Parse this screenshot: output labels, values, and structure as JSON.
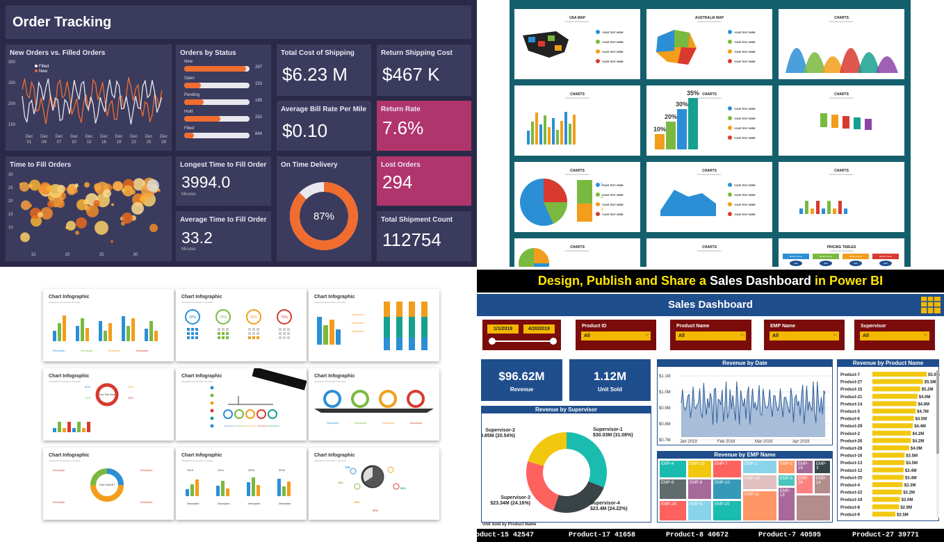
{
  "q1": {
    "title": "Order Tracking",
    "new_vs_filled": {
      "title": "New Orders vs. Filled Orders",
      "legend": [
        "Filled",
        "New"
      ],
      "y_ticks": [
        "300",
        "250",
        "200",
        "150"
      ],
      "x_ticks": [
        [
          "Dec",
          "01"
        ],
        [
          "Dec",
          "04"
        ],
        [
          "Dec",
          "07"
        ],
        [
          "Dec",
          "10"
        ],
        [
          "Dec",
          "13"
        ],
        [
          "Dec",
          "16"
        ],
        [
          "Dec",
          "19"
        ],
        [
          "Dec",
          "22"
        ],
        [
          "Dec",
          "25"
        ],
        [
          "Dec",
          "28"
        ]
      ]
    },
    "by_status": {
      "title": "Orders by Status",
      "rows": [
        {
          "label": "New",
          "value": "297",
          "fill": 0.95
        },
        {
          "label": "Open",
          "value": "153",
          "fill": 0.25
        },
        {
          "label": "Pending",
          "value": "165",
          "fill": 0.3
        },
        {
          "label": "Hold",
          "value": "252",
          "fill": 0.55
        },
        {
          "label": "Filled",
          "value": "844",
          "fill": 0.15
        }
      ]
    },
    "cost_shipping": {
      "title": "Total Cost of Shipping",
      "value": "$6.23 M"
    },
    "return_cost": {
      "title": "Return Shipping Cost",
      "value": "$467 K"
    },
    "avg_bill": {
      "title": "Average Bill Rate Per Mile",
      "value": "$0.10"
    },
    "return_rate": {
      "title": "Return Rate",
      "value": "7.6%"
    },
    "time_to_fill": {
      "title": "Time to Fill Orders",
      "y_ticks": [
        "30",
        "25",
        "20",
        "15",
        "10"
      ],
      "x_ticks": [
        "15",
        "20",
        "25",
        "30"
      ]
    },
    "longest": {
      "title": "Longest Time to Fill Order",
      "value": "3994.0",
      "unit": "Minutes"
    },
    "average": {
      "title": "Average Time to Fill Order",
      "value": "33.2",
      "unit": "Minutes"
    },
    "on_time": {
      "title": "On Time Delivery",
      "value": "87%",
      "fraction": 0.87
    },
    "lost": {
      "title": "Lost Orders",
      "value": "294"
    },
    "shipments": {
      "title": "Total Shipment Count",
      "value": "112754"
    }
  },
  "q2": {
    "slides": [
      {
        "title": "USA MAP"
      },
      {
        "title": "AUSTRALIA MAP"
      },
      {
        "title": "CHARTS"
      },
      {
        "title": "CHARTS"
      },
      {
        "title": "CHARTS"
      },
      {
        "title": "CHARTS"
      },
      {
        "title": "CHARTS"
      },
      {
        "title": "CHARTS"
      },
      {
        "title": "CHARTS"
      },
      {
        "title": "CHARTS"
      },
      {
        "title": "CHARTS"
      },
      {
        "title": "PRICING TABLES"
      }
    ],
    "subtitle": "Professional Presentation",
    "item": "YOUR TEXT HERE",
    "bar3d_labels": [
      "10%",
      "20%",
      "30%",
      "35%"
    ],
    "steps": [
      "1.",
      "2.",
      "3."
    ],
    "plans": [
      "BASIC PLAN",
      "BASIC PLAN",
      "BASIC PLAN",
      "BASIC PLAN"
    ],
    "price": "$99"
  },
  "q3": {
    "card_title": "Chart Infographic",
    "card_sub": "Infographic Presentation Template",
    "desc": "Description",
    "pcts": [
      "30%",
      "75%",
      "95%",
      "70%"
    ],
    "years": [
      "2013",
      "2014",
      "2015",
      "2016"
    ],
    "donut_pcts": [
      "80%",
      "70%",
      "40%",
      "35%"
    ],
    "center": "Your Title Here",
    "center2": "2016 TARGET",
    "stop_pcts": [
      "75%",
      "49%",
      "80%",
      "37%",
      "50%"
    ]
  },
  "q4": {
    "banner_pre": "Design, Publish and Share a ",
    "banner_mid": "Sales Dashboard",
    "banner_post": " in Power BI",
    "header": "Sales Dashboard",
    "date_from": "1/1/2019",
    "date_to": "4/20/2019",
    "slicers": [
      {
        "label": "Product ID",
        "value": "All"
      },
      {
        "label": "Product Name",
        "value": "All"
      },
      {
        "label": "EMP Name",
        "value": "All"
      },
      {
        "label": "Supervisor",
        "value": "All"
      }
    ],
    "kpis": [
      {
        "value": "$96.62M",
        "label": "Revenue"
      },
      {
        "value": "1.12M",
        "label": "Unit Sold"
      }
    ],
    "rev_by_date": {
      "title": "Revenue by Date",
      "y_ticks": [
        "$1.1M",
        "$1.0M",
        "$0.9M",
        "$0.8M",
        "$0.7M"
      ],
      "x_ticks": [
        "Jan 2019",
        "Feb 2019",
        "Mar 2019",
        "Apr 2019"
      ]
    },
    "rev_by_supervisor": {
      "title": "Revenue by Supervisor",
      "slices": [
        {
          "name": "Supervisor-1",
          "label": "$30.03M (31.08%)",
          "pct": 31.08,
          "color": "#1bbcb0"
        },
        {
          "name": "Supervisor-4",
          "label": "$23.4M (24.22%)",
          "pct": 24.22,
          "color": "#3a4346"
        },
        {
          "name": "Supervisor-3",
          "label": "$23.34M (24.16%)",
          "pct": 24.16,
          "color": "#fd625e"
        },
        {
          "name": "Supervisor-2",
          "label": "$19.85M (20.54%)",
          "pct": 20.54,
          "color": "#f2c80f"
        }
      ]
    },
    "rev_by_emp": {
      "title": "Revenue by EMP Name",
      "cells": [
        {
          "label": "EMP-4",
          "color": "#1bbcb0"
        },
        {
          "label": "EMP-15",
          "color": "#f2c80f"
        },
        {
          "label": "EMP-7",
          "color": "#fd625e"
        },
        {
          "label": "EMP-1",
          "color": "#8ad4eb"
        },
        {
          "label": "EMP-2",
          "color": "#fe9666"
        },
        {
          "label": "EMP-19",
          "color": "#a66999"
        },
        {
          "label": "EMP-3",
          "color": "#374649"
        },
        {
          "label": "EMP-9",
          "color": "#5f6b6d"
        },
        {
          "label": "EMP-8",
          "color": "#a66999"
        },
        {
          "label": "EMP-10",
          "color": "#3599b8"
        },
        {
          "label": "EMP-18",
          "color": "#dfbfbf"
        },
        {
          "label": "EMP-5",
          "color": "#4ac5bb"
        },
        {
          "label": "EMP-16",
          "color": "#fb8281"
        },
        {
          "label": "EMP-14",
          "color": "#b38c8c"
        },
        {
          "label": "EMP-28",
          "color": "#fd625e"
        },
        {
          "label": "EMP-6",
          "color": "#8ad4eb"
        },
        {
          "label": "EMP-20",
          "color": "#1bbcb0"
        },
        {
          "label": "EMP-11",
          "color": "#fe9666"
        },
        {
          "label": "EMP-13",
          "color": "#a66999"
        }
      ]
    },
    "rev_by_product": {
      "title": "Revenue by Product Name",
      "rows": [
        {
          "name": "Product-7",
          "label": "$5.9M",
          "value": 5.9
        },
        {
          "name": "Product-27",
          "label": "$5.5M",
          "value": 5.5
        },
        {
          "name": "Product-15",
          "label": "$5.2M",
          "value": 5.2
        },
        {
          "name": "Product-21",
          "label": "$4.9M",
          "value": 4.9
        },
        {
          "name": "Product-14",
          "label": "$4.8M",
          "value": 4.8
        },
        {
          "name": "Product-5",
          "label": "$4.7M",
          "value": 4.7
        },
        {
          "name": "Product-6",
          "label": "$4.5M",
          "value": 4.5
        },
        {
          "name": "Product-29",
          "label": "$4.4M",
          "value": 4.4
        },
        {
          "name": "Product-2",
          "label": "$4.2M",
          "value": 4.2
        },
        {
          "name": "Product-26",
          "label": "$4.2M",
          "value": 4.2
        },
        {
          "name": "Product-28",
          "label": "$4.0M",
          "value": 4.0
        },
        {
          "name": "Product-16",
          "label": "$3.5M",
          "value": 3.5
        },
        {
          "name": "Product-13",
          "label": "$3.5M",
          "value": 3.5
        },
        {
          "name": "Product-12",
          "label": "$3.4M",
          "value": 3.4
        },
        {
          "name": "Product-25",
          "label": "$3.4M",
          "value": 3.4
        },
        {
          "name": "Product-4",
          "label": "$3.3M",
          "value": 3.3
        },
        {
          "name": "Product-22",
          "label": "$3.2M",
          "value": 3.2
        },
        {
          "name": "Product-19",
          "label": "$3.0M",
          "value": 3.0
        },
        {
          "name": "Product-8",
          "label": "$2.9M",
          "value": 2.9
        },
        {
          "name": "Product-9",
          "label": "$2.5M",
          "value": 2.5
        }
      ]
    },
    "unit_sold_label": "Unit Sold by Product Name",
    "ticker": [
      "oduct-15 42547",
      "Product-17 41658",
      "Product-8 40672",
      "Product-7 40595",
      "Product-27 39771"
    ]
  }
}
